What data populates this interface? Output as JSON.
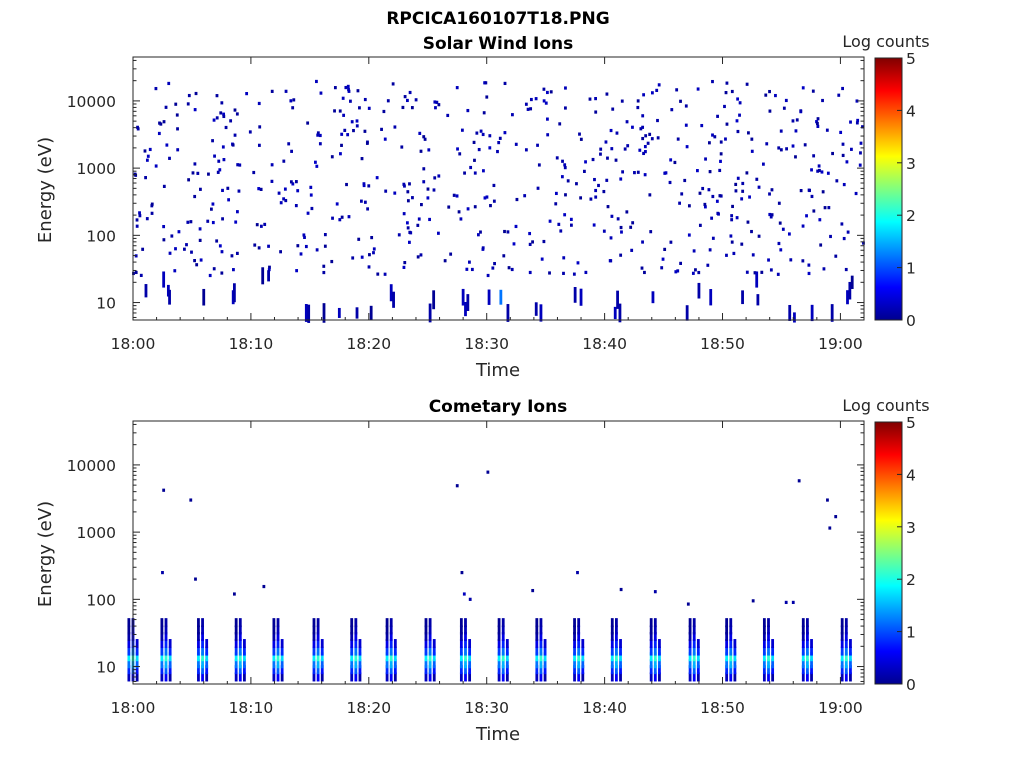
{
  "figure_title": "RPCICA160107T18.PNG",
  "chart_data": [
    {
      "type": "heatmap",
      "title": "Solar Wind Ions",
      "xlabel": "Time",
      "ylabel": "Energy (eV)",
      "x_ticks": [
        "18:00",
        "18:10",
        "18:20",
        "18:30",
        "18:40",
        "18:50",
        "19:00"
      ],
      "x_range_minutes": [
        0,
        62
      ],
      "y_scale": "log",
      "y_ticks": [
        "10",
        "100",
        "1000",
        "10000"
      ],
      "y_range": [
        5.5,
        45000
      ],
      "colorbar": {
        "label": "Log counts",
        "ticks": [
          "0",
          "1",
          "2",
          "3",
          "4",
          "5"
        ],
        "range": [
          0,
          5
        ],
        "colormap": "jet"
      },
      "grid": false,
      "noise_events": [
        {
          "t": 1.1,
          "e": 15,
          "lc": 0.2
        },
        {
          "t": 2.6,
          "e": 22,
          "lc": 0.3
        },
        {
          "t": 3.0,
          "e": 15,
          "lc": 0.3
        },
        {
          "t": 3.1,
          "e": 12,
          "lc": 0.2
        },
        {
          "t": 6.0,
          "e": 12,
          "lc": 0.1
        },
        {
          "t": 8.5,
          "e": 12,
          "lc": 0.3
        },
        {
          "t": 8.6,
          "e": 14,
          "lc": 0.2
        },
        {
          "t": 11.0,
          "e": 25,
          "lc": 0.1
        },
        {
          "t": 11.5,
          "e": 25,
          "lc": 0.2
        },
        {
          "t": 14.7,
          "e": 7,
          "lc": 0.3
        },
        {
          "t": 14.9,
          "e": 6.8,
          "lc": 0.2
        },
        {
          "t": 16.2,
          "e": 7,
          "lc": 0.1
        },
        {
          "t": 17.5,
          "e": 7,
          "lc": 0.3
        },
        {
          "t": 19.0,
          "e": 7,
          "lc": 0.2
        },
        {
          "t": 20.2,
          "e": 7,
          "lc": 0.1
        },
        {
          "t": 21.9,
          "e": 14,
          "lc": 0.3
        },
        {
          "t": 22.1,
          "e": 11,
          "lc": 0.2
        },
        {
          "t": 25.2,
          "e": 7,
          "lc": 0.2
        },
        {
          "t": 25.5,
          "e": 11,
          "lc": 0.1
        },
        {
          "t": 28.0,
          "e": 12,
          "lc": 0.3
        },
        {
          "t": 28.2,
          "e": 8,
          "lc": 0.3
        },
        {
          "t": 28.4,
          "e": 10,
          "lc": 0.2
        },
        {
          "t": 30.2,
          "e": 12,
          "lc": 0.3
        },
        {
          "t": 31.2,
          "e": 12,
          "lc": 1.2
        },
        {
          "t": 31.8,
          "e": 7,
          "lc": 0.2
        },
        {
          "t": 34.2,
          "e": 8,
          "lc": 0.2
        },
        {
          "t": 34.6,
          "e": 7,
          "lc": 0.3
        },
        {
          "t": 37.5,
          "e": 13,
          "lc": 0.2
        },
        {
          "t": 38.0,
          "e": 12,
          "lc": 0.3
        },
        {
          "t": 40.9,
          "e": 7,
          "lc": 0.3
        },
        {
          "t": 41.1,
          "e": 11,
          "lc": 0.2
        },
        {
          "t": 41.3,
          "e": 7,
          "lc": 0.2
        },
        {
          "t": 44.1,
          "e": 12,
          "lc": 0.3
        },
        {
          "t": 47.0,
          "e": 7,
          "lc": 0.2
        },
        {
          "t": 48.0,
          "e": 15,
          "lc": 0.2
        },
        {
          "t": 49.0,
          "e": 12,
          "lc": 0.3
        },
        {
          "t": 51.7,
          "e": 12,
          "lc": 0.2
        },
        {
          "t": 52.9,
          "e": 22,
          "lc": 0.3
        },
        {
          "t": 53.0,
          "e": 11,
          "lc": 0.2
        },
        {
          "t": 55.7,
          "e": 7,
          "lc": 0.2
        },
        {
          "t": 56.1,
          "e": 6,
          "lc": 0.3
        },
        {
          "t": 57.6,
          "e": 7,
          "lc": 0.3
        },
        {
          "t": 59.3,
          "e": 7,
          "lc": 0.2
        },
        {
          "t": 60.6,
          "e": 12,
          "lc": 0.3
        },
        {
          "t": 60.8,
          "e": 15,
          "lc": 0.2
        },
        {
          "t": 61.0,
          "e": 20,
          "lc": 0.1
        }
      ]
    },
    {
      "type": "heatmap",
      "title": "Cometary Ions",
      "xlabel": "Time",
      "ylabel": "Energy (eV)",
      "x_ticks": [
        "18:00",
        "18:10",
        "18:20",
        "18:30",
        "18:40",
        "18:50",
        "19:00"
      ],
      "x_range_minutes": [
        0,
        62
      ],
      "y_scale": "log",
      "y_ticks": [
        "10",
        "100",
        "1000",
        "10000"
      ],
      "y_range": [
        5.5,
        45000
      ],
      "colorbar": {
        "label": "Log counts",
        "ticks": [
          "0",
          "1",
          "2",
          "3",
          "4",
          "5"
        ],
        "range": [
          0,
          5
        ],
        "colormap": "jet"
      },
      "grid": false,
      "burst_times": [
        0.0,
        2.8,
        5.9,
        9.1,
        12.3,
        15.7,
        18.9,
        21.9,
        25.2,
        28.2,
        31.4,
        34.6,
        37.8,
        41.0,
        44.3,
        47.6,
        50.7,
        53.9,
        57.2,
        60.5
      ],
      "burst_profile": [
        {
          "e": 7,
          "lc": 0.6
        },
        {
          "e": 9,
          "lc": 1.1
        },
        {
          "e": 11,
          "lc": 1.5
        },
        {
          "e": 14,
          "lc": 2.1
        },
        {
          "e": 17,
          "lc": 1.2
        },
        {
          "e": 22,
          "lc": 0.8
        },
        {
          "e": 28,
          "lc": 0.5
        },
        {
          "e": 35,
          "lc": 0.3
        },
        {
          "e": 45,
          "lc": 0.2
        }
      ],
      "sparse_events": [
        {
          "t": 2.6,
          "e": 4200,
          "lc": 0.1
        },
        {
          "t": 4.9,
          "e": 3000,
          "lc": 0.1
        },
        {
          "t": 2.5,
          "e": 250,
          "lc": 0.2
        },
        {
          "t": 5.3,
          "e": 200,
          "lc": 0.1
        },
        {
          "t": 8.6,
          "e": 120,
          "lc": 0.1
        },
        {
          "t": 11.1,
          "e": 155,
          "lc": 0.1
        },
        {
          "t": 27.5,
          "e": 4900,
          "lc": 0.1
        },
        {
          "t": 30.1,
          "e": 7800,
          "lc": 0.1
        },
        {
          "t": 27.9,
          "e": 250,
          "lc": 0.1
        },
        {
          "t": 28.1,
          "e": 120,
          "lc": 0.3
        },
        {
          "t": 28.6,
          "e": 100,
          "lc": 0.2
        },
        {
          "t": 33.9,
          "e": 135,
          "lc": 0.1
        },
        {
          "t": 37.7,
          "e": 250,
          "lc": 0.2
        },
        {
          "t": 41.4,
          "e": 140,
          "lc": 0.1
        },
        {
          "t": 44.3,
          "e": 130,
          "lc": 0.2
        },
        {
          "t": 56.5,
          "e": 5800,
          "lc": 0.1
        },
        {
          "t": 58.9,
          "e": 3000,
          "lc": 0.1
        },
        {
          "t": 59.1,
          "e": 1150,
          "lc": 0.1
        },
        {
          "t": 59.6,
          "e": 1700,
          "lc": 0.1
        },
        {
          "t": 55.4,
          "e": 90,
          "lc": 0.2
        },
        {
          "t": 56.0,
          "e": 90,
          "lc": 0.2
        },
        {
          "t": 52.6,
          "e": 95,
          "lc": 0.1
        },
        {
          "t": 47.1,
          "e": 85,
          "lc": 0.1
        }
      ]
    }
  ]
}
